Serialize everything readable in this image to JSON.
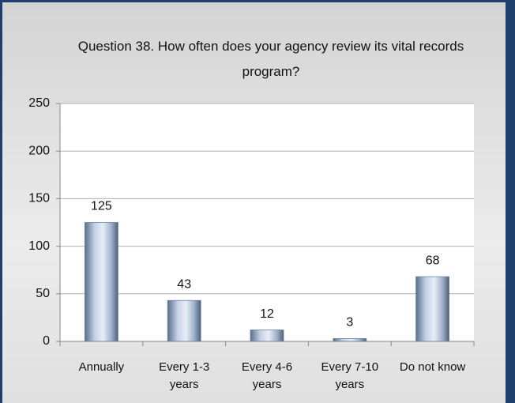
{
  "chart_data": {
    "type": "bar",
    "title": "Question 38.  How often does your agency review its vital records program?",
    "categories": [
      "Annually",
      "Every 1-3 years",
      "Every 4-6 years",
      "Every 7-10 years",
      "Do not know"
    ],
    "values": [
      125,
      43,
      12,
      3,
      68
    ],
    "color": "#a9b9d1",
    "ylim": [
      0,
      250
    ],
    "yticks": [
      0,
      50,
      100,
      150,
      200,
      250
    ],
    "grid": true
  }
}
